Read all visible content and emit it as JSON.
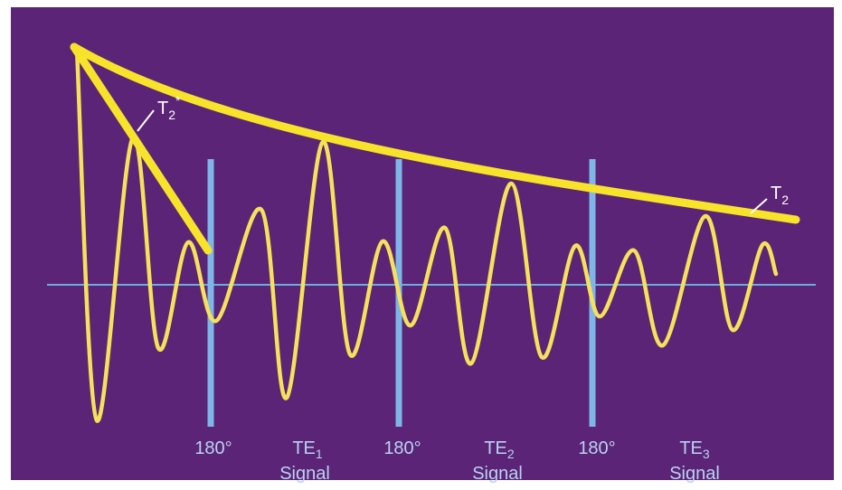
{
  "colors": {
    "background": "#5b2477",
    "frame": "#ffffff",
    "signal": "#f5e15a",
    "envelope": "#f7e32a",
    "pulse_line": "#7fb6e8",
    "baseline": "#6aaee0",
    "text": "#b9d3f0",
    "t_label_text": "#ffffff"
  },
  "labels": {
    "t2_star": "T",
    "t2_star_sub": "2",
    "t2_star_sup": "*",
    "t2": "T",
    "t2_sub": "2",
    "pulse_1": "180°",
    "pulse_2": "180°",
    "pulse_3": "180°",
    "te1": "TE",
    "te1_sub": "1",
    "te2": "TE",
    "te2_sub": "2",
    "te3": "TE",
    "te3_sub": "3",
    "signal_1": "Signal",
    "signal_2": "Signal",
    "signal_3": "Signal"
  }
}
